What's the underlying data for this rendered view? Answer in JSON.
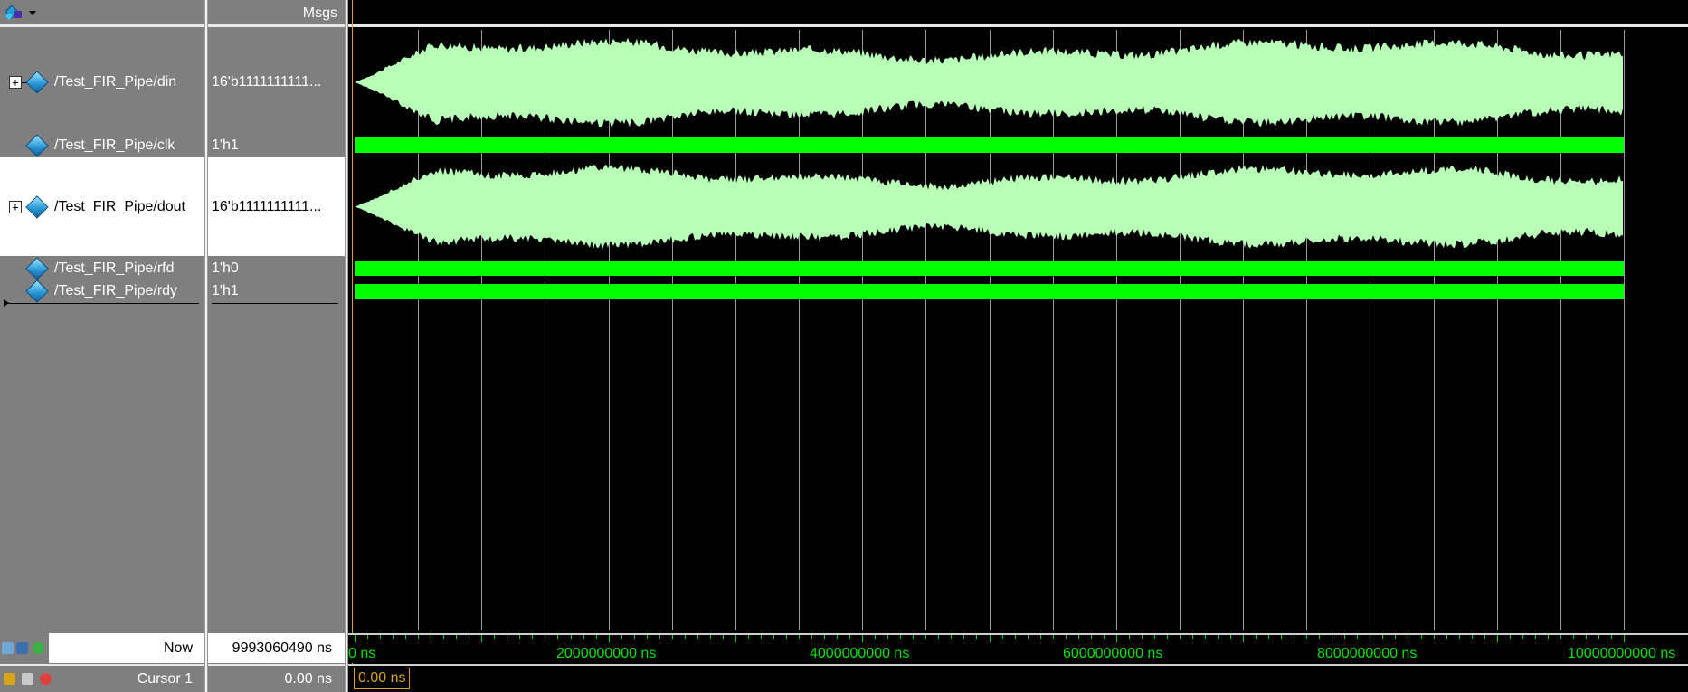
{
  "header": {
    "msgs_label": "Msgs"
  },
  "signals": [
    {
      "name": "/Test_FIR_Pipe/din",
      "value": "16'b1111111111...",
      "expandable": true,
      "expand_glyph": "+"
    },
    {
      "name": "/Test_FIR_Pipe/clk",
      "value": "1'h1",
      "expandable": false
    },
    {
      "name": "/Test_FIR_Pipe/dout",
      "value": "16'b1111111111...",
      "expandable": true,
      "expand_glyph": "+"
    },
    {
      "name": "/Test_FIR_Pipe/rfd",
      "value": "1'h0",
      "expandable": false
    },
    {
      "name": "/Test_FIR_Pipe/rdy",
      "value": "1'h1",
      "expandable": false
    }
  ],
  "footer": {
    "now_label": "Now",
    "now_value": "9993060490 ns",
    "cursor_label": "Cursor 1",
    "cursor_value": "0.00 ns",
    "cursor_box": "0.00 ns"
  },
  "time_axis": {
    "labels": [
      "0 ns",
      "2000000000 ns",
      "4000000000 ns",
      "6000000000 ns",
      "8000000000 ns",
      "10000000000 ns"
    ]
  },
  "colors": {
    "wave_bus": "#b8ffb8",
    "wave_bit": "#00ff00",
    "grid": "#9a9a9a",
    "cursor": "#d8a418",
    "axis": "#00e000"
  },
  "icons": {
    "toolbar_menu": "signal-diamond-dropdown-icon",
    "signal": "diamond-signal-icon",
    "expand": "plus-box-icon"
  }
}
